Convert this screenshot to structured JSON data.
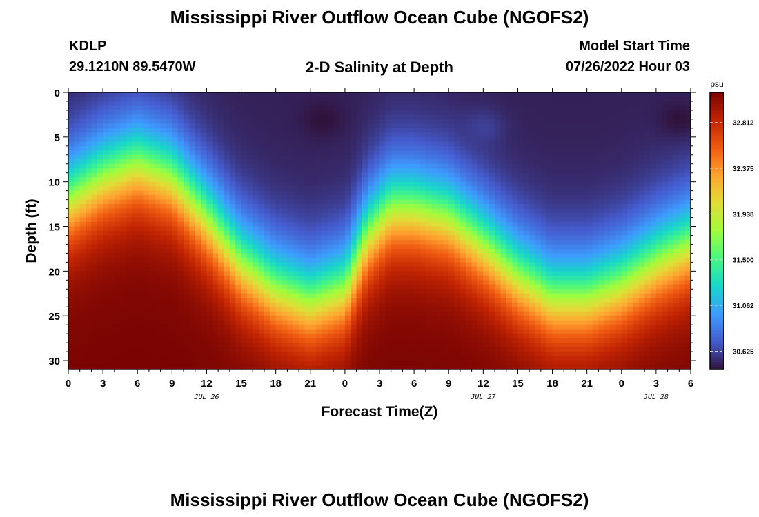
{
  "page": {
    "title": "Mississippi River Outflow Ocean Cube (NGOFS2)",
    "title_repeat": "Mississippi River Outflow Ocean Cube (NGOFS2)",
    "station_id": "KDLP",
    "station_coords": "29.1210N  89.5470W",
    "plot_subtitle": "2-D Salinity at Depth",
    "model_start_label": "Model Start Time",
    "model_start_value": "07/26/2022 Hour 03"
  },
  "chart_data": {
    "type": "heatmap",
    "title": "2-D Salinity at Depth",
    "xlabel": "Forecast Time(Z)",
    "ylabel": "Depth (ft)",
    "x_range_hours": [
      0,
      54
    ],
    "x_ticks": [
      "0",
      "3",
      "6",
      "9",
      "12",
      "15",
      "18",
      "21",
      "0",
      "3",
      "6",
      "9",
      "12",
      "15",
      "18",
      "21",
      "0",
      "3",
      "6"
    ],
    "date_labels": [
      {
        "text": "JUL 26",
        "at_hour": 12
      },
      {
        "text": "JUL 27",
        "at_hour": 36
      },
      {
        "text": "JUL 28",
        "at_hour": 51
      }
    ],
    "y_ticks": [
      0,
      5,
      10,
      15,
      20,
      25,
      30
    ],
    "ylim": [
      0,
      31
    ],
    "y_inverted": true,
    "colorbar": {
      "unit": "psu",
      "ticks": [
        "32.812",
        "32.375",
        "31.938",
        "31.500",
        "31.062",
        "30.625"
      ],
      "range": [
        30.45,
        33.1
      ]
    },
    "salinity_model": {
      "interface_depth_ft": [
        [
          0,
          12
        ],
        [
          3,
          9.5
        ],
        [
          6,
          8
        ],
        [
          9,
          9.5
        ],
        [
          12,
          14
        ],
        [
          15,
          19
        ],
        [
          18,
          22
        ],
        [
          21,
          23.5
        ],
        [
          24,
          22
        ],
        [
          26,
          16
        ],
        [
          28,
          13
        ],
        [
          30,
          13
        ],
        [
          33,
          14
        ],
        [
          36,
          17
        ],
        [
          39,
          20.5
        ],
        [
          42,
          23
        ],
        [
          45,
          23
        ],
        [
          48,
          21.5
        ],
        [
          51,
          19
        ],
        [
          54,
          17
        ]
      ],
      "surface_minima": [
        {
          "hour": 22,
          "depth_ft": 3,
          "value": 30.45
        },
        {
          "hour": 53,
          "depth_ft": 3,
          "value": 30.45
        },
        {
          "hour": 36,
          "depth_ft": 4,
          "value": 30.62
        }
      ],
      "min_psu": 30.5,
      "max_psu": 33.1
    }
  }
}
